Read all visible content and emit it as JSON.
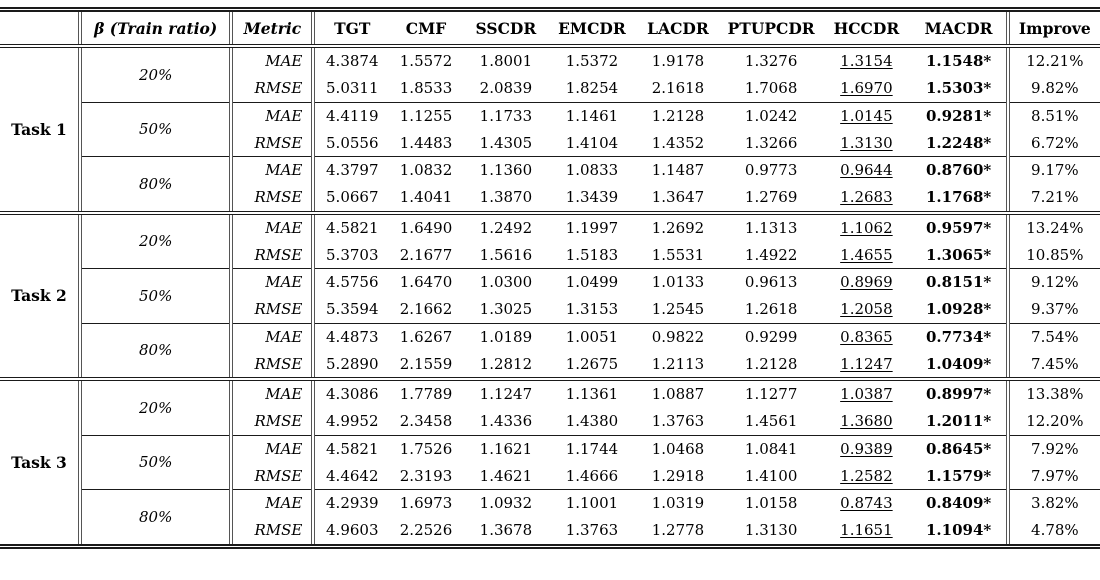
{
  "colors": {
    "text": "#000000",
    "background": "#ffffff",
    "rule_dark": "#1a1a1a",
    "rule_double": "#555555"
  },
  "chart_data": {
    "type": "table",
    "header": {
      "beta": "β (Train ratio)",
      "metric": "Metric",
      "models": [
        "TGT",
        "CMF",
        "SSCDR",
        "EMCDR",
        "LACDR",
        "PTUPCDR",
        "HCCDR",
        "MACDR"
      ],
      "improve": "Improve"
    },
    "legend_hints": {
      "underlined_column": "HCCDR",
      "bold_starred_column": "MACDR"
    },
    "tasks": [
      {
        "label": "Task 1",
        "groups": [
          {
            "ratio": "20%",
            "rows": [
              {
                "metric": "MAE",
                "values": [
                  "4.3874",
                  "1.5572",
                  "1.8001",
                  "1.5372",
                  "1.9178",
                  "1.3276",
                  "1.3154",
                  "1.1548*"
                ],
                "improve": "12.21%"
              },
              {
                "metric": "RMSE",
                "values": [
                  "5.0311",
                  "1.8533",
                  "2.0839",
                  "1.8254",
                  "2.1618",
                  "1.7068",
                  "1.6970",
                  "1.5303*"
                ],
                "improve": "9.82%"
              }
            ]
          },
          {
            "ratio": "50%",
            "rows": [
              {
                "metric": "MAE",
                "values": [
                  "4.4119",
                  "1.1255",
                  "1.1733",
                  "1.1461",
                  "1.2128",
                  "1.0242",
                  "1.0145",
                  "0.9281*"
                ],
                "improve": "8.51%"
              },
              {
                "metric": "RMSE",
                "values": [
                  "5.0556",
                  "1.4483",
                  "1.4305",
                  "1.4104",
                  "1.4352",
                  "1.3266",
                  "1.3130",
                  "1.2248*"
                ],
                "improve": "6.72%"
              }
            ]
          },
          {
            "ratio": "80%",
            "rows": [
              {
                "metric": "MAE",
                "values": [
                  "4.3797",
                  "1.0832",
                  "1.1360",
                  "1.0833",
                  "1.1487",
                  "0.9773",
                  "0.9644",
                  "0.8760*"
                ],
                "improve": "9.17%"
              },
              {
                "metric": "RMSE",
                "values": [
                  "5.0667",
                  "1.4041",
                  "1.3870",
                  "1.3439",
                  "1.3647",
                  "1.2769",
                  "1.2683",
                  "1.1768*"
                ],
                "improve": "7.21%"
              }
            ]
          }
        ]
      },
      {
        "label": "Task 2",
        "groups": [
          {
            "ratio": "20%",
            "rows": [
              {
                "metric": "MAE",
                "values": [
                  "4.5821",
                  "1.6490",
                  "1.2492",
                  "1.1997",
                  "1.2692",
                  "1.1313",
                  "1.1062",
                  "0.9597*"
                ],
                "improve": "13.24%"
              },
              {
                "metric": "RMSE",
                "values": [
                  "5.3703",
                  "2.1677",
                  "1.5616",
                  "1.5183",
                  "1.5531",
                  "1.4922",
                  "1.4655",
                  "1.3065*"
                ],
                "improve": "10.85%"
              }
            ]
          },
          {
            "ratio": "50%",
            "rows": [
              {
                "metric": "MAE",
                "values": [
                  "4.5756",
                  "1.6470",
                  "1.0300",
                  "1.0499",
                  "1.0133",
                  "0.9613",
                  "0.8969",
                  "0.8151*"
                ],
                "improve": "9.12%"
              },
              {
                "metric": "RMSE",
                "values": [
                  "5.3594",
                  "2.1662",
                  "1.3025",
                  "1.3153",
                  "1.2545",
                  "1.2618",
                  "1.2058",
                  "1.0928*"
                ],
                "improve": "9.37%"
              }
            ]
          },
          {
            "ratio": "80%",
            "rows": [
              {
                "metric": "MAE",
                "values": [
                  "4.4873",
                  "1.6267",
                  "1.0189",
                  "1.0051",
                  "0.9822",
                  "0.9299",
                  "0.8365",
                  "0.7734*"
                ],
                "improve": "7.54%"
              },
              {
                "metric": "RMSE",
                "values": [
                  "5.2890",
                  "2.1559",
                  "1.2812",
                  "1.2675",
                  "1.2113",
                  "1.2128",
                  "1.1247",
                  "1.0409*"
                ],
                "improve": "7.45%"
              }
            ]
          }
        ]
      },
      {
        "label": "Task 3",
        "groups": [
          {
            "ratio": "20%",
            "rows": [
              {
                "metric": "MAE",
                "values": [
                  "4.3086",
                  "1.7789",
                  "1.1247",
                  "1.1361",
                  "1.0887",
                  "1.1277",
                  "1.0387",
                  "0.8997*"
                ],
                "improve": "13.38%"
              },
              {
                "metric": "RMSE",
                "values": [
                  "4.9952",
                  "2.3458",
                  "1.4336",
                  "1.4380",
                  "1.3763",
                  "1.4561",
                  "1.3680",
                  "1.2011*"
                ],
                "improve": "12.20%"
              }
            ]
          },
          {
            "ratio": "50%",
            "rows": [
              {
                "metric": "MAE",
                "values": [
                  "4.5821",
                  "1.7526",
                  "1.1621",
                  "1.1744",
                  "1.0468",
                  "1.0841",
                  "0.9389",
                  "0.8645*"
                ],
                "improve": "7.92%"
              },
              {
                "metric": "RMSE",
                "values": [
                  "4.4642",
                  "2.3193",
                  "1.4621",
                  "1.4666",
                  "1.2918",
                  "1.4100",
                  "1.2582",
                  "1.1579*"
                ],
                "improve": "7.97%"
              }
            ]
          },
          {
            "ratio": "80%",
            "rows": [
              {
                "metric": "MAE",
                "values": [
                  "4.2939",
                  "1.6973",
                  "1.0932",
                  "1.1001",
                  "1.0319",
                  "1.0158",
                  "0.8743",
                  "0.8409*"
                ],
                "improve": "3.82%"
              },
              {
                "metric": "RMSE",
                "values": [
                  "4.9603",
                  "2.2526",
                  "1.3678",
                  "1.3763",
                  "1.2778",
                  "1.3130",
                  "1.1651",
                  "1.1094*"
                ],
                "improve": "4.78%"
              }
            ]
          }
        ]
      }
    ]
  }
}
